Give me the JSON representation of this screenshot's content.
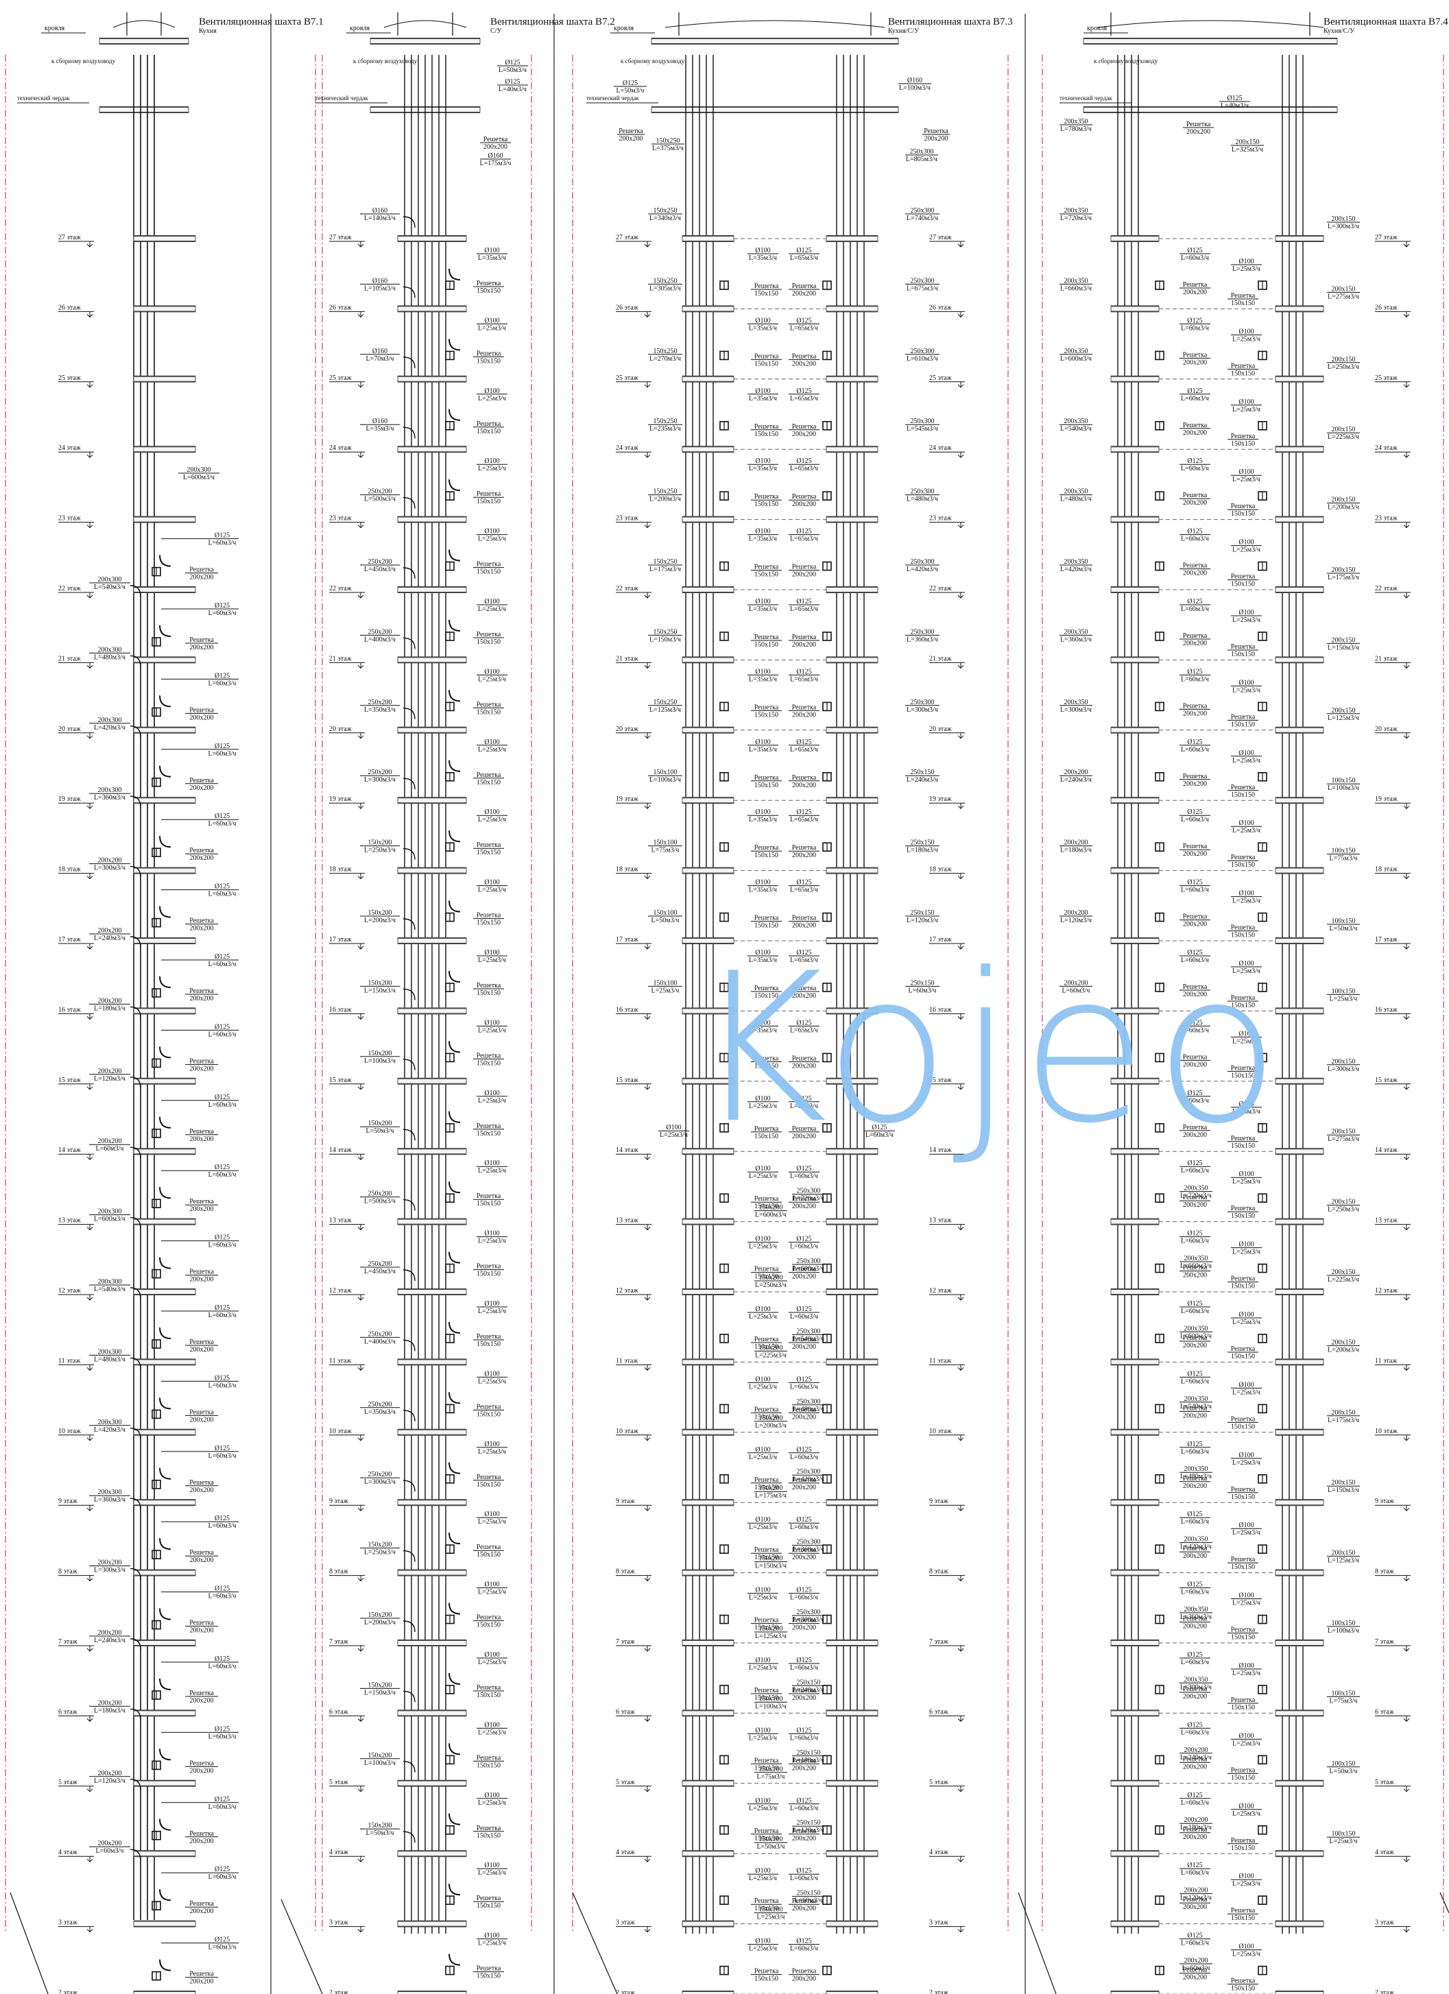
{
  "sections": [
    {
      "title": "Вентиляционная шахта В7.1",
      "sub": "Кухня"
    },
    {
      "title": "Вентиляционная шахта В7.2",
      "sub": "С/У"
    },
    {
      "title": "Вентиляционная шахта В7.3",
      "sub": "Кухня/С/У"
    },
    {
      "title": "Вентиляционная шахта В7.4",
      "sub": "Кухня/С/У"
    }
  ],
  "common": {
    "roof": "кровля",
    "collector": "к сборному воздуховоду",
    "attic": "технический чердак"
  },
  "floors": [
    "27 этаж",
    "26 этаж",
    "25 этаж",
    "24 этаж",
    "23 этаж",
    "22 этаж",
    "21 этаж",
    "20 этаж",
    "19 этаж",
    "18 этаж",
    "17 этаж",
    "16 этаж",
    "15 этаж",
    "14 этаж",
    "13 этаж",
    "12 этаж",
    "11 этаж",
    "10 этаж",
    "9 этаж",
    "8 этаж",
    "7 этаж",
    "6 этаж",
    "5 этаж",
    "4 этаж",
    "3 этаж",
    "2 этаж"
  ],
  "s1": {
    "left": [
      [
        "200x300",
        "L=540м3/ч"
      ],
      [
        "200x300",
        "L=480м3/ч"
      ],
      [
        "200x300",
        "L=420м3/ч"
      ],
      [
        "200x300",
        "L=360м3/ч"
      ],
      [
        "200x200",
        "L=300м3/ч"
      ],
      [
        "200x200",
        "L=240м3/ч"
      ],
      [
        "200x200",
        "L=180м3/ч"
      ],
      [
        "200x200",
        "L=120м3/ч"
      ],
      [
        "200x200",
        "L=60м3/ч"
      ],
      [
        "200x300",
        "L=600м3/ч"
      ],
      [
        "200x300",
        "L=540м3/ч"
      ],
      [
        "200x300",
        "L=480м3/ч"
      ],
      [
        "200x300",
        "L=420м3/ч"
      ],
      [
        "200x300",
        "L=360м3/ч"
      ],
      [
        "200x200",
        "L=300м3/ч"
      ],
      [
        "200x200",
        "L=240м3/ч"
      ],
      [
        "200x200",
        "L=180м3/ч"
      ],
      [
        "200x200",
        "L=120м3/ч"
      ],
      [
        "200x200",
        "L=60м3/ч"
      ]
    ],
    "top": [
      "200x300",
      "L=600м3/ч"
    ],
    "branch": [
      "Ø125",
      "L=60м3/ч"
    ],
    "grille": [
      "Решетка",
      "200x200"
    ]
  },
  "s2": {
    "top": [
      [
        "Ø125",
        "L=50м3/ч"
      ],
      [
        "Ø125",
        "L=40м3/ч"
      ],
      [
        "Решетка",
        "200x200"
      ],
      [
        "Ø160",
        "L=175м3/ч"
      ]
    ],
    "left": [
      [
        "Ø160",
        "L=140м3/ч"
      ],
      [
        "Ø160",
        "L=105м3/ч"
      ],
      [
        "Ø160",
        "L=70м3/ч"
      ],
      [
        "Ø160",
        "L=35м3/ч"
      ],
      [
        "250x200",
        "L=500м3/ч"
      ],
      [
        "250x200",
        "L=450м3/ч"
      ],
      [
        "250x200",
        "L=400м3/ч"
      ],
      [
        "250x200",
        "L=350м3/ч"
      ],
      [
        "250x200",
        "L=300м3/ч"
      ],
      [
        "150x200",
        "L=250м3/ч"
      ],
      [
        "150x200",
        "L=200м3/ч"
      ],
      [
        "150x200",
        "L=150м3/ч"
      ],
      [
        "150x200",
        "L=100м3/ч"
      ],
      [
        "150x200",
        "L=50м3/ч"
      ],
      [
        "250x200",
        "L=500м3/ч"
      ],
      [
        "250x200",
        "L=450м3/ч"
      ],
      [
        "250x200",
        "L=400м3/ч"
      ],
      [
        "250x200",
        "L=350м3/ч"
      ],
      [
        "250x200",
        "L=300м3/ч"
      ],
      [
        "150x200",
        "L=250м3/ч"
      ],
      [
        "150x200",
        "L=200м3/ч"
      ],
      [
        "150x200",
        "L=150м3/ч"
      ],
      [
        "150x200",
        "L=100м3/ч"
      ],
      [
        "150x200",
        "L=50м3/ч"
      ]
    ],
    "branch": [
      "Ø100",
      "L=25м3/ч"
    ],
    "branchTop": [
      "Ø100",
      "L=35м3/ч"
    ],
    "grille": [
      "Решетка",
      "150x150"
    ]
  },
  "s3": {
    "topL": [
      [
        "Ø125",
        "L=50м3/ч"
      ],
      [
        "Решетка",
        "200x200"
      ],
      [
        "150x250",
        "L=375м3/ч"
      ]
    ],
    "topR": [
      [
        "Ø160",
        "L=100м3/ч"
      ],
      [
        "Решетка",
        "200x200"
      ],
      [
        "250x300",
        "L=805м3/ч"
      ]
    ],
    "left": [
      [
        "150x250",
        "L=340м3/ч"
      ],
      [
        "150x250",
        "L=305м3/ч"
      ],
      [
        "150x250",
        "L=270м3/ч"
      ],
      [
        "150x250",
        "L=235м3/ч"
      ],
      [
        "150x250",
        "L=200м3/ч"
      ],
      [
        "150x250",
        "L=175м3/ч"
      ],
      [
        "150x250",
        "L=150м3/ч"
      ],
      [
        "150x250",
        "L=125м3/ч"
      ],
      [
        "150x100",
        "L=100м3/ч"
      ],
      [
        "150x100",
        "L=75м3/ч"
      ],
      [
        "150x100",
        "L=50м3/ч"
      ],
      [
        "150x100",
        "L=25м3/ч"
      ]
    ],
    "right": [
      [
        "250x300",
        "L=740м3/ч"
      ],
      [
        "250x300",
        "L=675м3/ч"
      ],
      [
        "250x300",
        "L=610м3/ч"
      ],
      [
        "250x300",
        "L=545м3/ч"
      ],
      [
        "250x300",
        "L=480м3/ч"
      ],
      [
        "250x300",
        "L=420м3/ч"
      ],
      [
        "250x300",
        "L=360м3/ч"
      ],
      [
        "250x300",
        "L=300м3/ч"
      ],
      [
        "250x150",
        "L=240м3/ч"
      ],
      [
        "250x150",
        "L=180м3/ч"
      ],
      [
        "250x150",
        "L=120м3/ч"
      ],
      [
        "250x150",
        "L=60м3/ч"
      ]
    ],
    "midPairs": [
      [
        "250x300",
        "L=720м3/ч",
        "150x200",
        "L=600м3/ч"
      ],
      [
        "250x300",
        "L=600м3/ч",
        "150x200",
        "L=250м3/ч"
      ],
      [
        "250x300",
        "L=540м3/ч",
        "150x200",
        "L=225м3/ч"
      ],
      [
        "250x300",
        "L=480м3/ч",
        "150x200",
        "L=200м3/ч"
      ],
      [
        "250x300",
        "L=420м3/ч",
        "150x200",
        "L=175м3/ч"
      ],
      [
        "250x300",
        "L=360м3/ч",
        "150x200",
        "L=150м3/ч"
      ],
      [
        "250x300",
        "L=300м3/ч",
        "150x200",
        "L=125м3/ч"
      ],
      [
        "250x150",
        "L=240м3/ч",
        "150x100",
        "L=100м3/ч"
      ],
      [
        "250x150",
        "L=180м3/ч",
        "150x100",
        "L=75м3/ч"
      ],
      [
        "250x150",
        "L=120м3/ч",
        "150x100",
        "L=50м3/ч"
      ],
      [
        "250x150",
        "L=60м3/ч",
        "150x100",
        "L=25м3/ч"
      ]
    ],
    "b100": [
      "Ø100",
      "L=25м3/ч"
    ],
    "b100t": [
      "Ø100",
      "L=35м3/ч"
    ],
    "b125": [
      "Ø125",
      "L=60м3/ч"
    ],
    "b125t": [
      "Ø125",
      "L=65м3/ч"
    ],
    "g150": [
      "Решетка",
      "150x150"
    ],
    "g200": [
      "Решетка",
      "200x200"
    ]
  },
  "s4": {
    "topL": [
      [
        "200x350",
        "L=780м3/ч"
      ]
    ],
    "topM": [
      [
        "Ø125",
        "L=40м3/ч"
      ],
      [
        "Решетка",
        "200x200"
      ],
      [
        "200x150",
        "L=325м3/ч"
      ]
    ],
    "left": [
      [
        "200x350",
        "L=720м3/ч"
      ],
      [
        "200x350",
        "L=660м3/ч"
      ],
      [
        "200x350",
        "L=600м3/ч"
      ],
      [
        "200x350",
        "L=540м3/ч"
      ],
      [
        "200x350",
        "L=480м3/ч"
      ],
      [
        "200x350",
        "L=420м3/ч"
      ],
      [
        "200x350",
        "L=360м3/ч"
      ],
      [
        "200x350",
        "L=300м3/ч"
      ],
      [
        "200x200",
        "L=240м3/ч"
      ],
      [
        "200x200",
        "L=180м3/ч"
      ],
      [
        "200x200",
        "L=120м3/ч"
      ],
      [
        "200x200",
        "L=60м3/ч"
      ]
    ],
    "right": [
      [
        "200x150",
        "L=300м3/ч"
      ],
      [
        "200x150",
        "L=275м3/ч"
      ],
      [
        "200x150",
        "L=250м3/ч"
      ],
      [
        "200x150",
        "L=225м3/ч"
      ],
      [
        "200x150",
        "L=200м3/ч"
      ],
      [
        "200x150",
        "L=175м3/ч"
      ],
      [
        "200x150",
        "L=150м3/ч"
      ],
      [
        "200x150",
        "L=125м3/ч"
      ],
      [
        "100x150",
        "L=100м3/ч"
      ],
      [
        "100x150",
        "L=75м3/ч"
      ],
      [
        "100x150",
        "L=50м3/ч"
      ],
      [
        "100x150",
        "L=25м3/ч"
      ],
      [
        "200x150",
        "L=300м3/ч"
      ],
      [
        "200x150",
        "L=275м3/ч"
      ],
      [
        "200x150",
        "L=250м3/ч"
      ],
      [
        "200x150",
        "L=225м3/ч"
      ],
      [
        "200x150",
        "L=200м3/ч"
      ],
      [
        "200x150",
        "L=175м3/ч"
      ],
      [
        "200x150",
        "L=150м3/ч"
      ],
      [
        "200x150",
        "L=125м3/ч"
      ],
      [
        "100x150",
        "L=100м3/ч"
      ],
      [
        "100x150",
        "L=75м3/ч"
      ],
      [
        "100x150",
        "L=50м3/ч"
      ],
      [
        "100x150",
        "L=25м3/ч"
      ]
    ],
    "mid": [
      [
        "200x350",
        "L=720м3/ч"
      ],
      [
        "200x350",
        "L=660м3/ч"
      ],
      [
        "200x350",
        "L=600м3/ч"
      ],
      [
        "200x350",
        "L=540м3/ч"
      ],
      [
        "200x350",
        "L=480м3/ч"
      ],
      [
        "200x350",
        "L=420м3/ч"
      ],
      [
        "200x350",
        "L=360м3/ч"
      ],
      [
        "200x350",
        "L=300м3/ч"
      ],
      [
        "200x200",
        "L=240м3/ч"
      ],
      [
        "200x200",
        "L=180м3/ч"
      ],
      [
        "200x200",
        "L=120м3/ч"
      ],
      [
        "200x200",
        "L=60м3/ч"
      ]
    ],
    "b100": [
      "Ø100",
      "L=25м3/ч"
    ],
    "b125": [
      "Ø125",
      "L=60м3/ч"
    ],
    "g150": [
      "Решетка",
      "150x150"
    ],
    "g200": [
      "Решетка",
      "200x200"
    ]
  },
  "watermark": "Kojeo"
}
